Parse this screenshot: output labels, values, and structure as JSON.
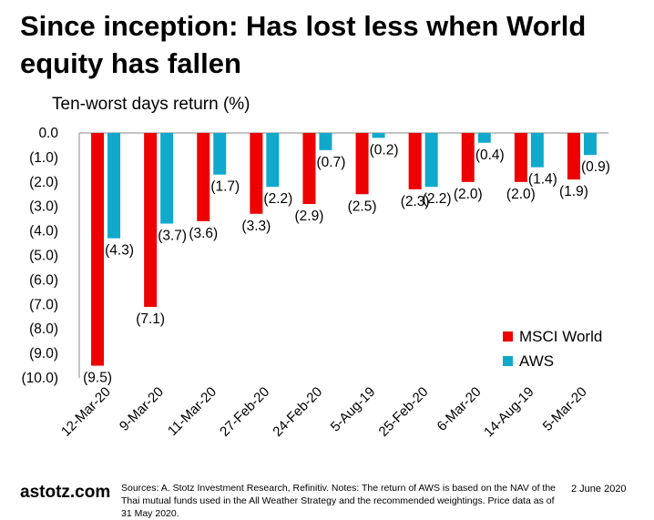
{
  "title": "Since inception: Has lost less when World equity has fallen",
  "colors": {
    "msci": "#ee0000",
    "aws": "#10a9cc"
  },
  "chart_data": {
    "type": "bar",
    "title": "Since inception: Has lost less when World equity has fallen",
    "ylabel": "Ten-worst days return (%)",
    "xlabel": "",
    "ylim": [
      -10,
      0
    ],
    "yticks": [
      0,
      -1,
      -2,
      -3,
      -4,
      -5,
      -6,
      -7,
      -8,
      -9,
      -10
    ],
    "ytick_labels": [
      "0.0",
      "(1.0)",
      "(2.0)",
      "(3.0)",
      "(4.0)",
      "(5.0)",
      "(6.0)",
      "(7.0)",
      "(8.0)",
      "(9.0)",
      "(10.0)"
    ],
    "categories": [
      "12-Mar-20",
      "9-Mar-20",
      "11-Mar-20",
      "27-Feb-20",
      "24-Feb-20",
      "5-Aug-19",
      "25-Feb-20",
      "6-Mar-20",
      "14-Aug-19",
      "5-Mar-20"
    ],
    "series": [
      {
        "name": "MSCI World",
        "color": "#ee0000",
        "values": [
          -9.5,
          -7.1,
          -3.6,
          -3.3,
          -2.9,
          -2.5,
          -2.3,
          -2.0,
          -2.0,
          -1.9
        ],
        "labels": [
          "(9.5)",
          "(7.1)",
          "(3.6)",
          "(3.3)",
          "(2.9)",
          "(2.5)",
          "(2.3)",
          "(2.0)",
          "(2.0)",
          "(1.9)"
        ]
      },
      {
        "name": "AWS",
        "color": "#10a9cc",
        "values": [
          -4.3,
          -3.7,
          -1.7,
          -2.2,
          -0.7,
          -0.2,
          -2.2,
          -0.4,
          -1.4,
          -0.9
        ],
        "labels": [
          "(4.3)",
          "(3.7)",
          "(1.7)",
          "(2.2)",
          "(0.7)",
          "(0.2)",
          "(2.2)",
          "(0.4)",
          "(1.4)",
          "(0.9)"
        ]
      }
    ],
    "legend": "bottom-right",
    "grid": false
  },
  "footer": {
    "brand": "astotz.com",
    "sources": "Sources: A. Stotz Investment Research, Refinitiv. Notes: The return of AWS is based on the NAV of the Thai mutual funds used in the All Weather Strategy and the recommended weightings. Price data as of 31 May 2020.",
    "date": "2 June 2020"
  }
}
